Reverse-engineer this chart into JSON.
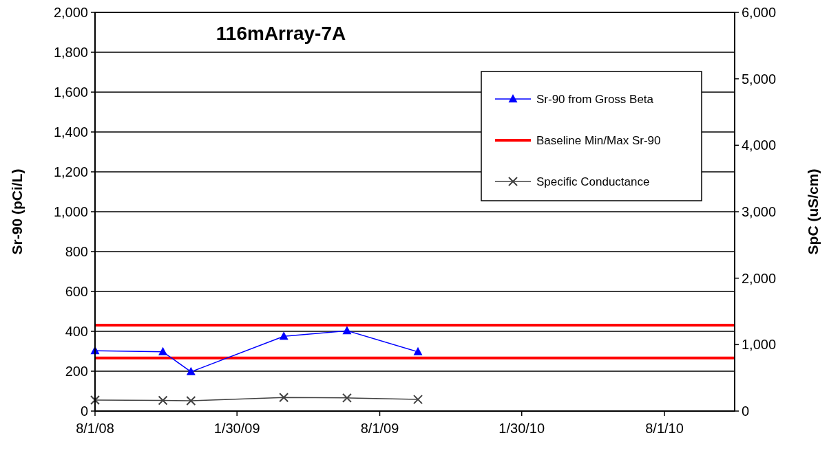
{
  "chart_data": {
    "type": "line",
    "title": "116mArray-7A",
    "ylabel": "Sr-90 (pCi/L)",
    "y2label": "SpC (uS/cm)",
    "xlim": [
      "2008-08-01",
      "2010-10-30"
    ],
    "xticks": [
      {
        "value": "2008-08-01",
        "label": "8/1/08"
      },
      {
        "value": "2009-01-30",
        "label": "1/30/09"
      },
      {
        "value": "2009-08-01",
        "label": "8/1/09"
      },
      {
        "value": "2010-01-30",
        "label": "1/30/10"
      },
      {
        "value": "2010-08-01",
        "label": "8/1/10"
      }
    ],
    "ylim": [
      0,
      2000
    ],
    "yticks": [
      0,
      200,
      400,
      600,
      800,
      {
        "value": 1000,
        "label": "1,000"
      },
      {
        "value": 1200,
        "label": "1,200"
      },
      {
        "value": 1400,
        "label": "1,400"
      },
      {
        "value": 1600,
        "label": "1,600"
      },
      {
        "value": 1800,
        "label": "1,800"
      },
      {
        "value": 2000,
        "label": "2,000"
      }
    ],
    "y2lim": [
      0,
      6000
    ],
    "y2ticks": [
      0,
      {
        "value": 1000,
        "label": "1,000"
      },
      {
        "value": 2000,
        "label": "2,000"
      },
      {
        "value": 3000,
        "label": "3,000"
      },
      {
        "value": 4000,
        "label": "4,000"
      },
      {
        "value": 5000,
        "label": "5,000"
      },
      {
        "value": 6000,
        "label": "6,000"
      }
    ],
    "series": [
      {
        "name": "Sr-90 from Gross Beta",
        "color": "#0000ff",
        "marker": "triangle",
        "x": [
          "2008-08-01",
          "2008-10-27",
          "2008-12-02",
          "2009-03-31",
          "2009-06-20",
          "2009-09-19"
        ],
        "values": [
          303,
          297,
          197,
          375,
          403,
          297
        ]
      },
      {
        "name": "Specific Conductance",
        "color": "#404040",
        "marker": "cross",
        "axis": "y2",
        "x": [
          "2008-08-01",
          "2008-10-27",
          "2008-12-02",
          "2009-03-31",
          "2009-06-20",
          "2009-09-19"
        ],
        "values": [
          165,
          160,
          155,
          205,
          198,
          175
        ]
      }
    ],
    "ref_lines": [
      {
        "axis": "y",
        "value": 431,
        "label": "Baseline Min/Max Sr-90",
        "color": "#ff0000"
      },
      {
        "axis": "y",
        "value": 266,
        "color": "#ff0000"
      }
    ],
    "grid": "y",
    "legend": "top right"
  }
}
